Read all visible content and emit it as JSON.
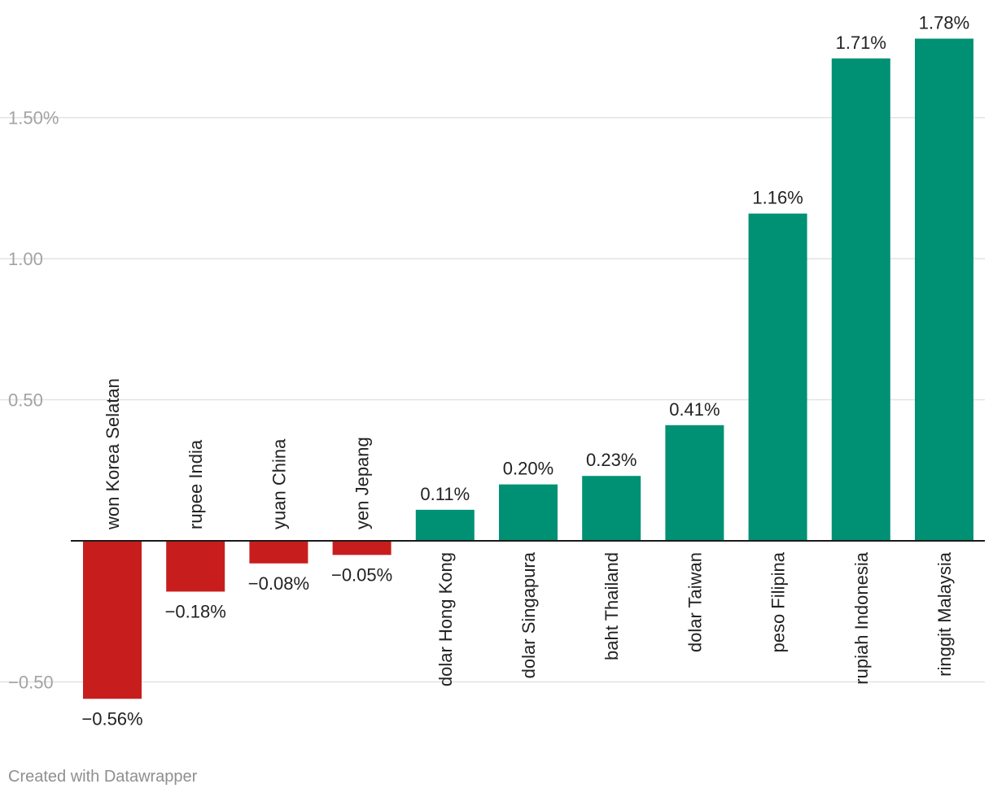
{
  "chart_data": {
    "type": "bar",
    "categories": [
      "won Korea Selatan",
      "rupee India",
      "yuan China",
      "yen Jepang",
      "dolar Hong Kong",
      "dolar Singapura",
      "baht Thailand",
      "dolar Taiwan",
      "peso Filipina",
      "rupiah Indonesia",
      "ringgit Malaysia"
    ],
    "values": [
      -0.56,
      -0.18,
      -0.08,
      -0.05,
      0.11,
      0.2,
      0.23,
      0.41,
      1.16,
      1.71,
      1.78
    ],
    "value_labels": [
      "−0.56%",
      "−0.18%",
      "−0.08%",
      "−0.05%",
      "0.11%",
      "0.20%",
      "0.23%",
      "0.41%",
      "1.16%",
      "1.71%",
      "1.78%"
    ],
    "yticks": [
      {
        "value": 1.5,
        "label": "1.50%"
      },
      {
        "value": 1.0,
        "label": "1.00"
      },
      {
        "value": 0.5,
        "label": "0.50"
      },
      {
        "value": -0.5,
        "label": "−0.50"
      }
    ],
    "ylim": [
      -0.56,
      1.78
    ],
    "grid": true,
    "colors": {
      "positive": "#009174",
      "negative": "#c71e1d"
    }
  },
  "footer": {
    "credit": "Created with Datawrapper"
  }
}
